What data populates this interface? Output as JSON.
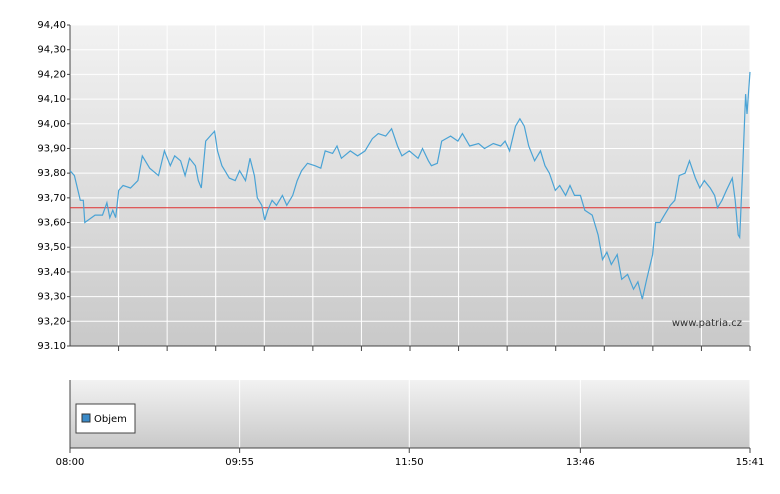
{
  "chart_data": {
    "type": "line",
    "watermark": "www.patria.cz",
    "xlim": [
      480,
      941
    ],
    "xticks": [
      {
        "value": 480,
        "label": "08:00"
      },
      {
        "value": 595,
        "label": "09:55"
      },
      {
        "value": 710,
        "label": "11:50"
      },
      {
        "value": 826,
        "label": "13:46"
      },
      {
        "value": 941,
        "label": "15:41"
      }
    ],
    "ylim": [
      93.1,
      94.4
    ],
    "yticks": [
      {
        "value": 93.1,
        "label": "93.10"
      },
      {
        "value": 93.2,
        "label": "93,20"
      },
      {
        "value": 93.3,
        "label": "93,30"
      },
      {
        "value": 93.4,
        "label": "93,40"
      },
      {
        "value": 93.5,
        "label": "93,50"
      },
      {
        "value": 93.6,
        "label": "93,60"
      },
      {
        "value": 93.7,
        "label": "93,70"
      },
      {
        "value": 93.8,
        "label": "93,80"
      },
      {
        "value": 93.9,
        "label": "93,90"
      },
      {
        "value": 94.0,
        "label": "94,00"
      },
      {
        "value": 94.1,
        "label": "94,10"
      },
      {
        "value": 94.2,
        "label": "94,20"
      },
      {
        "value": 94.3,
        "label": "94,30"
      },
      {
        "value": 94.4,
        "label": "94,40"
      }
    ],
    "reference_line": {
      "value": 93.66,
      "color": "#e03030"
    },
    "series": [
      {
        "color": "#4aa3d5",
        "x": [
          480,
          483,
          487,
          489,
          490,
          497,
          502,
          505,
          507,
          509,
          511,
          513,
          516,
          521,
          526,
          529,
          534,
          540,
          544,
          548,
          551,
          555,
          558,
          561,
          565,
          567,
          569,
          572,
          575,
          578,
          580,
          583,
          585,
          588,
          592,
          595,
          599,
          602,
          605,
          607,
          610,
          612,
          614,
          617,
          620,
          624,
          627,
          631,
          634,
          637,
          641,
          646,
          650,
          653,
          658,
          661,
          664,
          670,
          675,
          680,
          685,
          689,
          694,
          698,
          702,
          705,
          710,
          716,
          719,
          723,
          725,
          729,
          732,
          738,
          743,
          746,
          751,
          757,
          761,
          767,
          772,
          775,
          778,
          782,
          785,
          788,
          791,
          795,
          799,
          802,
          805,
          809,
          812,
          816,
          819,
          822,
          826,
          829,
          834,
          838,
          841,
          844,
          847,
          851,
          854,
          858,
          862,
          865,
          868,
          871,
          875,
          877,
          880,
          883,
          887,
          890,
          893,
          897,
          900,
          904,
          907,
          910,
          914,
          917,
          919,
          922,
          925,
          929,
          931,
          933,
          934,
          936,
          938,
          939,
          941
        ],
        "values": [
          93.81,
          93.79,
          93.69,
          93.69,
          93.6,
          93.63,
          93.63,
          93.68,
          93.62,
          93.65,
          93.62,
          93.73,
          93.75,
          93.74,
          93.77,
          93.87,
          93.82,
          93.79,
          93.89,
          93.83,
          93.87,
          93.85,
          93.79,
          93.86,
          93.83,
          93.77,
          93.74,
          93.93,
          93.95,
          93.97,
          93.89,
          93.83,
          93.81,
          93.78,
          93.77,
          93.81,
          93.77,
          93.86,
          93.79,
          93.7,
          93.67,
          93.61,
          93.65,
          93.69,
          93.67,
          93.71,
          93.67,
          93.71,
          93.77,
          93.81,
          93.84,
          93.83,
          93.82,
          93.89,
          93.88,
          93.91,
          93.86,
          93.89,
          93.87,
          93.89,
          93.94,
          93.96,
          93.95,
          93.98,
          93.91,
          93.87,
          93.89,
          93.86,
          93.9,
          93.85,
          93.83,
          93.84,
          93.93,
          93.95,
          93.93,
          93.96,
          93.91,
          93.92,
          93.9,
          93.92,
          93.91,
          93.93,
          93.89,
          93.99,
          94.02,
          93.99,
          93.91,
          93.85,
          93.89,
          93.83,
          93.8,
          93.73,
          93.75,
          93.71,
          93.75,
          93.71,
          93.71,
          93.65,
          93.63,
          93.55,
          93.45,
          93.48,
          93.43,
          93.47,
          93.37,
          93.39,
          93.33,
          93.36,
          93.29,
          93.37,
          93.47,
          93.6,
          93.6,
          93.63,
          93.67,
          93.69,
          93.79,
          93.8,
          93.85,
          93.78,
          93.74,
          93.77,
          93.74,
          93.71,
          93.66,
          93.69,
          93.73,
          93.78,
          93.69,
          93.55,
          93.54,
          93.81,
          94.12,
          94.04,
          94.21
        ]
      }
    ],
    "volume_legend": {
      "name": "Objem",
      "color": "#3a8ac8"
    }
  }
}
